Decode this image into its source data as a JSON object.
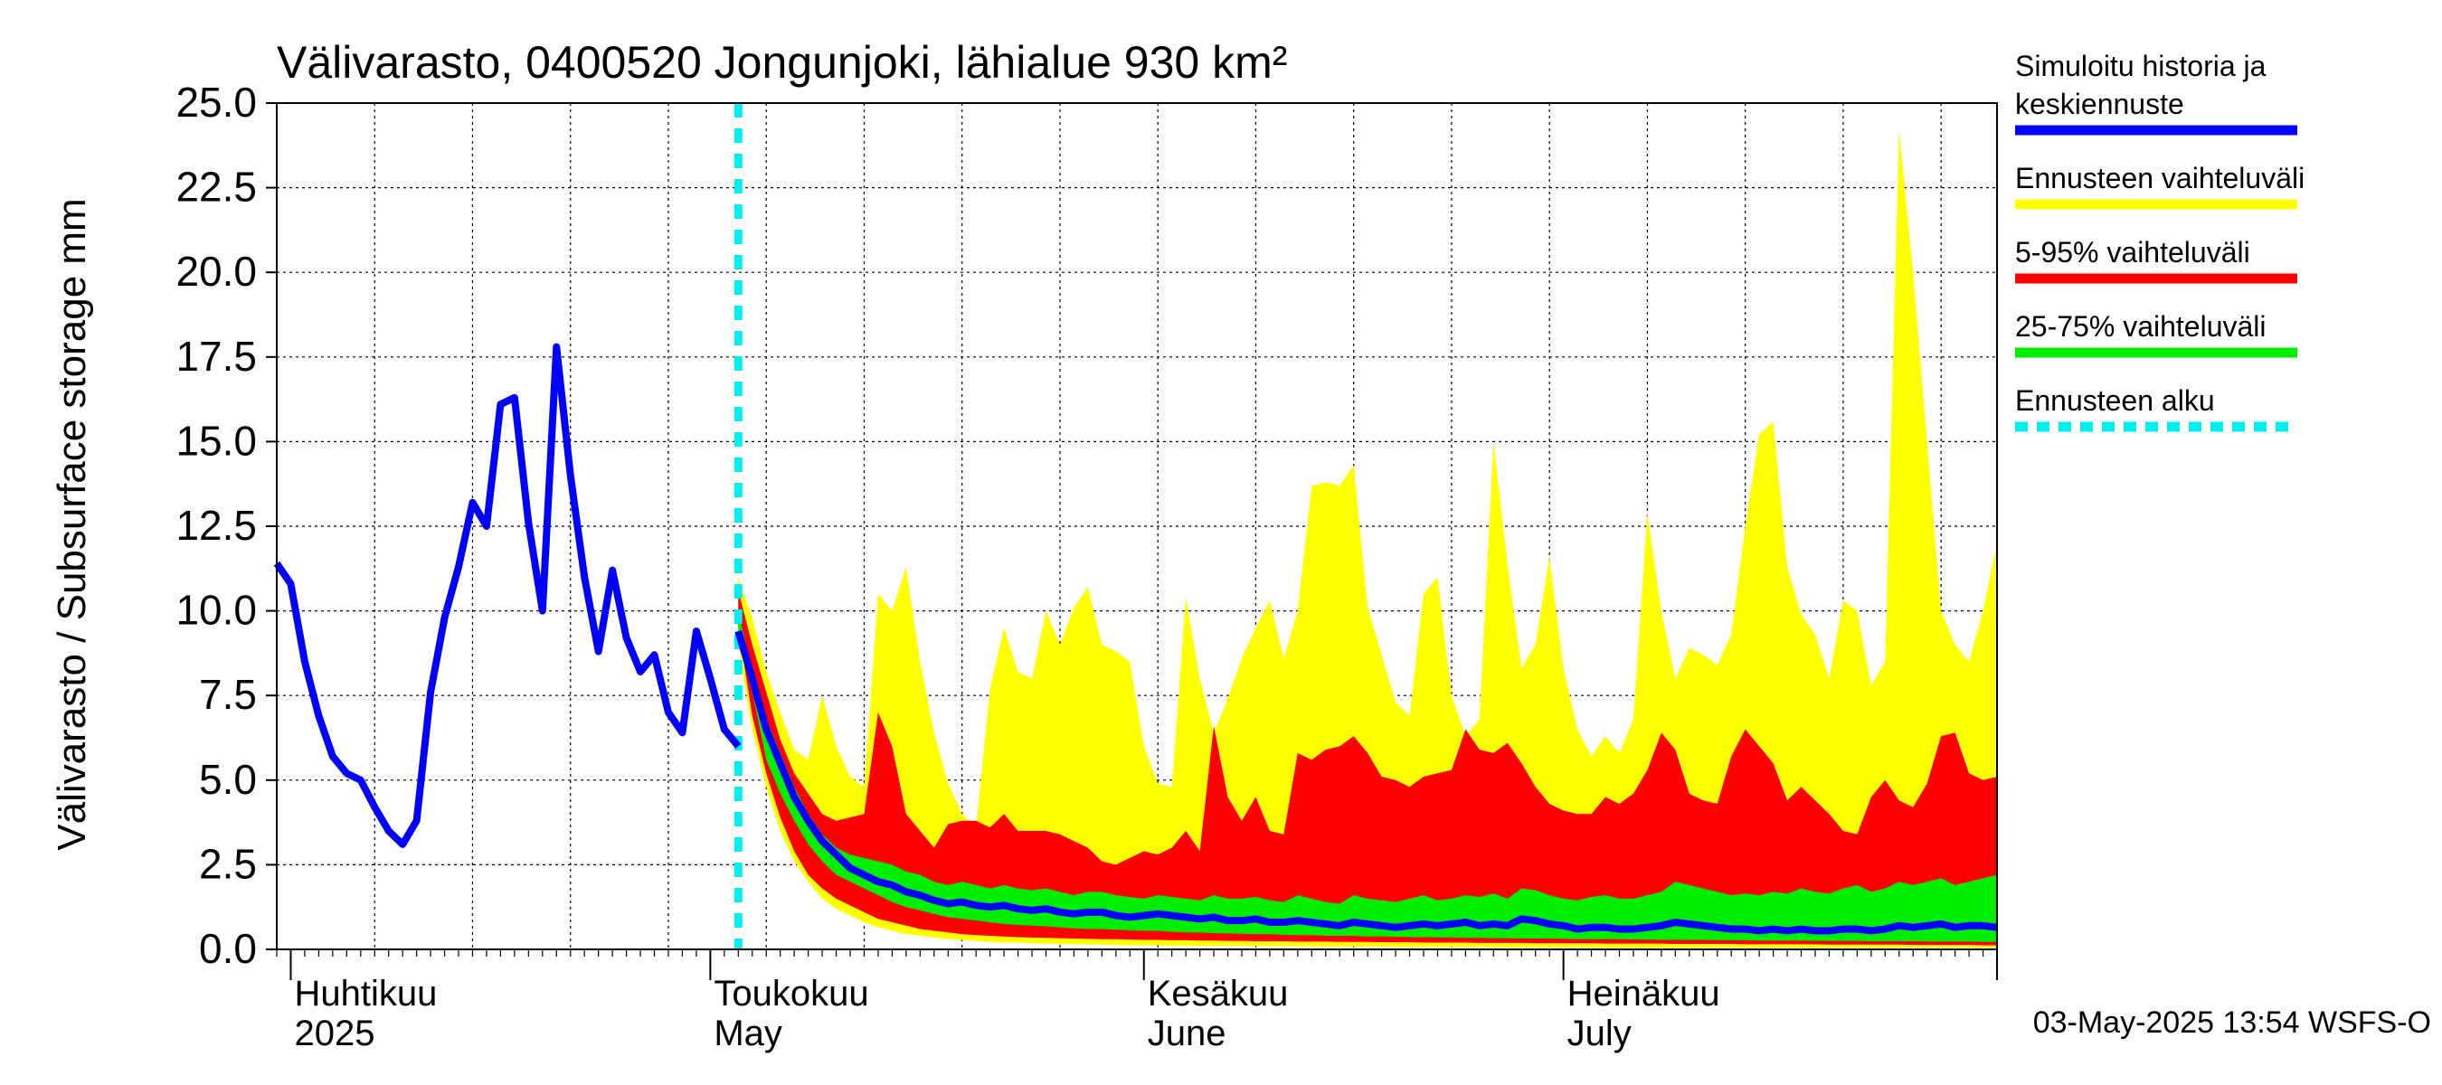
{
  "chart_data": {
    "type": "area",
    "title": "Välivarasto, 0400520 Jongunjoki, lähialue 930 km²",
    "ylabel": "Välivarasto / Subsurface storage  mm",
    "ylim": [
      0,
      25
    ],
    "yticks": [
      {
        "value": 0,
        "label": "0.0"
      },
      {
        "value": 2.5,
        "label": "2.5"
      },
      {
        "value": 5,
        "label": "5.0"
      },
      {
        "value": 7.5,
        "label": "7.5"
      },
      {
        "value": 10,
        "label": "10.0"
      },
      {
        "value": 12.5,
        "label": "12.5"
      },
      {
        "value": 15,
        "label": "15.0"
      },
      {
        "value": 17.5,
        "label": "17.5"
      },
      {
        "value": 20,
        "label": "20.0"
      },
      {
        "value": 22.5,
        "label": "22.5"
      },
      {
        "value": 25,
        "label": "25.0"
      }
    ],
    "x_start": "2025-03-31",
    "x_end": "2025-08-01",
    "forecast_start": "2025-05-03",
    "month_labels": [
      {
        "date": "2025-04-01",
        "line1": "Huhtikuu",
        "line2": "2025"
      },
      {
        "date": "2025-05-01",
        "line1": "Toukokuu",
        "line2": "May"
      },
      {
        "date": "2025-06-01",
        "line1": "Kesäkuu",
        "line2": "June"
      },
      {
        "date": "2025-07-01",
        "line1": "Heinäkuu",
        "line2": "July"
      }
    ],
    "history": {
      "dates": [
        "2025-03-31",
        "2025-04-01",
        "2025-04-02",
        "2025-04-03",
        "2025-04-04",
        "2025-04-05",
        "2025-04-06",
        "2025-04-07",
        "2025-04-08",
        "2025-04-09",
        "2025-04-10",
        "2025-04-11",
        "2025-04-12",
        "2025-04-13",
        "2025-04-14",
        "2025-04-15",
        "2025-04-16",
        "2025-04-17",
        "2025-04-18",
        "2025-04-19",
        "2025-04-20",
        "2025-04-21",
        "2025-04-22",
        "2025-04-23",
        "2025-04-24",
        "2025-04-25",
        "2025-04-26",
        "2025-04-27",
        "2025-04-28",
        "2025-04-29",
        "2025-04-30",
        "2025-05-01",
        "2025-05-02",
        "2025-05-03"
      ],
      "values": [
        11.4,
        10.8,
        8.5,
        6.9,
        5.7,
        5.2,
        5.0,
        4.2,
        3.5,
        3.1,
        3.8,
        7.6,
        9.8,
        11.3,
        13.2,
        12.5,
        16.1,
        16.3,
        12.6,
        10.0,
        17.8,
        14.0,
        11.0,
        8.8,
        11.2,
        9.2,
        8.2,
        8.7,
        7.0,
        6.4,
        9.4,
        8.0,
        6.5,
        6.0
      ]
    },
    "forecast": {
      "dates": [
        "2025-05-03",
        "2025-05-04",
        "2025-05-05",
        "2025-05-06",
        "2025-05-07",
        "2025-05-08",
        "2025-05-09",
        "2025-05-10",
        "2025-05-11",
        "2025-05-12",
        "2025-05-13",
        "2025-05-14",
        "2025-05-15",
        "2025-05-16",
        "2025-05-17",
        "2025-05-18",
        "2025-05-19",
        "2025-05-20",
        "2025-05-21",
        "2025-05-22",
        "2025-05-23",
        "2025-05-24",
        "2025-05-25",
        "2025-05-26",
        "2025-05-27",
        "2025-05-28",
        "2025-05-29",
        "2025-05-30",
        "2025-05-31",
        "2025-06-01",
        "2025-06-02",
        "2025-06-03",
        "2025-06-04",
        "2025-06-05",
        "2025-06-06",
        "2025-06-07",
        "2025-06-08",
        "2025-06-09",
        "2025-06-10",
        "2025-06-11",
        "2025-06-12",
        "2025-06-13",
        "2025-06-14",
        "2025-06-15",
        "2025-06-16",
        "2025-06-17",
        "2025-06-18",
        "2025-06-19",
        "2025-06-20",
        "2025-06-21",
        "2025-06-22",
        "2025-06-23",
        "2025-06-24",
        "2025-06-25",
        "2025-06-26",
        "2025-06-27",
        "2025-06-28",
        "2025-06-29",
        "2025-06-30",
        "2025-07-01",
        "2025-07-02",
        "2025-07-03",
        "2025-07-04",
        "2025-07-05",
        "2025-07-06",
        "2025-07-07",
        "2025-07-08",
        "2025-07-09",
        "2025-07-10",
        "2025-07-11",
        "2025-07-12",
        "2025-07-13",
        "2025-07-14",
        "2025-07-15",
        "2025-07-16",
        "2025-07-17",
        "2025-07-18",
        "2025-07-19",
        "2025-07-20",
        "2025-07-21",
        "2025-07-22",
        "2025-07-23",
        "2025-07-24",
        "2025-07-25",
        "2025-07-26",
        "2025-07-27",
        "2025-07-28",
        "2025-07-29",
        "2025-07-30",
        "2025-07-31",
        "2025-08-01"
      ],
      "min": [
        9.0,
        6.5,
        4.8,
        3.5,
        2.6,
        2.0,
        1.5,
        1.2,
        1.0,
        0.8,
        0.65,
        0.55,
        0.45,
        0.4,
        0.35,
        0.3,
        0.28,
        0.25,
        0.22,
        0.2,
        0.2,
        0.18,
        0.17,
        0.16,
        0.15,
        0.15,
        0.14,
        0.13,
        0.12,
        0.12,
        0.12,
        0.11,
        0.1,
        0.1,
        0.1,
        0.1,
        0.1,
        0.09,
        0.09,
        0.09,
        0.09,
        0.08,
        0.08,
        0.08,
        0.08,
        0.08,
        0.08,
        0.07,
        0.07,
        0.07,
        0.07,
        0.07,
        0.07,
        0.07,
        0.06,
        0.06,
        0.06,
        0.06,
        0.06,
        0.06,
        0.06,
        0.06,
        0.05,
        0.05,
        0.05,
        0.05,
        0.05,
        0.05,
        0.05,
        0.05,
        0.05,
        0.05,
        0.05,
        0.05,
        0.05,
        0.05,
        0.05,
        0.05,
        0.05,
        0.05,
        0.05,
        0.05,
        0.05,
        0.05,
        0.05,
        0.05,
        0.05,
        0.05,
        0.05,
        0.05,
        0.05
      ],
      "p5": [
        9.5,
        6.9,
        5.2,
        3.9,
        2.9,
        2.2,
        1.8,
        1.5,
        1.3,
        1.1,
        0.9,
        0.8,
        0.7,
        0.6,
        0.55,
        0.5,
        0.45,
        0.42,
        0.4,
        0.38,
        0.36,
        0.35,
        0.34,
        0.33,
        0.32,
        0.31,
        0.3,
        0.3,
        0.29,
        0.28,
        0.28,
        0.27,
        0.27,
        0.26,
        0.26,
        0.25,
        0.25,
        0.24,
        0.24,
        0.24,
        0.23,
        0.23,
        0.23,
        0.22,
        0.22,
        0.22,
        0.21,
        0.21,
        0.21,
        0.2,
        0.2,
        0.2,
        0.2,
        0.19,
        0.19,
        0.19,
        0.19,
        0.18,
        0.18,
        0.18,
        0.18,
        0.18,
        0.17,
        0.17,
        0.17,
        0.17,
        0.17,
        0.16,
        0.16,
        0.16,
        0.16,
        0.16,
        0.15,
        0.15,
        0.15,
        0.15,
        0.15,
        0.15,
        0.14,
        0.14,
        0.14,
        0.14,
        0.14,
        0.14,
        0.13,
        0.13,
        0.13,
        0.13,
        0.13,
        0.12,
        0.12
      ],
      "p25": [
        9.1,
        7.6,
        5.6,
        4.6,
        3.8,
        3.1,
        2.6,
        2.2,
        2.0,
        1.8,
        1.6,
        1.4,
        1.25,
        1.15,
        1.05,
        0.95,
        0.9,
        0.85,
        0.8,
        0.75,
        0.72,
        0.7,
        0.68,
        0.65,
        0.62,
        0.6,
        0.6,
        0.58,
        0.56,
        0.55,
        0.55,
        0.52,
        0.5,
        0.5,
        0.48,
        0.47,
        0.46,
        0.45,
        0.45,
        0.43,
        0.42,
        0.42,
        0.4,
        0.4,
        0.4,
        0.38,
        0.38,
        0.37,
        0.36,
        0.36,
        0.35,
        0.35,
        0.34,
        0.34,
        0.33,
        0.33,
        0.32,
        0.32,
        0.32,
        0.31,
        0.3,
        0.3,
        0.3,
        0.3,
        0.29,
        0.29,
        0.28,
        0.28,
        0.28,
        0.28,
        0.27,
        0.27,
        0.27,
        0.26,
        0.26,
        0.26,
        0.26,
        0.25,
        0.25,
        0.25,
        0.25,
        0.24,
        0.24,
        0.24,
        0.24,
        0.23,
        0.23,
        0.23,
        0.23,
        0.22,
        0.22
      ],
      "median": [
        9.4,
        8.0,
        6.5,
        5.5,
        4.5,
        3.8,
        3.2,
        2.8,
        2.4,
        2.2,
        2.0,
        1.9,
        1.7,
        1.6,
        1.45,
        1.35,
        1.4,
        1.3,
        1.25,
        1.3,
        1.2,
        1.15,
        1.2,
        1.1,
        1.05,
        1.1,
        1.1,
        1.0,
        0.95,
        1.0,
        1.05,
        1.0,
        0.95,
        0.9,
        0.95,
        0.85,
        0.85,
        0.9,
        0.8,
        0.8,
        0.85,
        0.8,
        0.75,
        0.7,
        0.8,
        0.75,
        0.7,
        0.65,
        0.7,
        0.75,
        0.7,
        0.75,
        0.8,
        0.7,
        0.75,
        0.7,
        0.9,
        0.85,
        0.75,
        0.7,
        0.6,
        0.65,
        0.65,
        0.6,
        0.6,
        0.65,
        0.7,
        0.8,
        0.75,
        0.7,
        0.65,
        0.6,
        0.6,
        0.55,
        0.6,
        0.55,
        0.6,
        0.55,
        0.55,
        0.6,
        0.6,
        0.55,
        0.6,
        0.7,
        0.65,
        0.7,
        0.75,
        0.65,
        0.7,
        0.7,
        0.65
      ],
      "p75": [
        10.0,
        8.2,
        6.8,
        5.8,
        4.8,
        4.0,
        3.4,
        3.0,
        2.8,
        2.7,
        2.6,
        2.5,
        2.3,
        2.2,
        2.0,
        1.9,
        2.0,
        1.9,
        1.8,
        1.9,
        1.8,
        1.75,
        1.8,
        1.7,
        1.6,
        1.7,
        1.7,
        1.6,
        1.55,
        1.5,
        1.6,
        1.55,
        1.5,
        1.45,
        1.6,
        1.5,
        1.5,
        1.55,
        1.45,
        1.4,
        1.6,
        1.5,
        1.4,
        1.35,
        1.6,
        1.5,
        1.45,
        1.4,
        1.5,
        1.6,
        1.45,
        1.5,
        1.6,
        1.55,
        1.65,
        1.5,
        1.8,
        1.75,
        1.6,
        1.5,
        1.45,
        1.55,
        1.6,
        1.5,
        1.5,
        1.6,
        1.7,
        2.0,
        1.9,
        1.8,
        1.7,
        1.6,
        1.65,
        1.6,
        1.7,
        1.65,
        1.8,
        1.7,
        1.65,
        1.8,
        1.9,
        1.7,
        1.8,
        2.0,
        1.9,
        2.0,
        2.1,
        1.9,
        2.0,
        2.1,
        2.2
      ],
      "p95": [
        10.6,
        9.0,
        7.6,
        6.2,
        5.2,
        4.6,
        4.0,
        3.8,
        3.9,
        4.0,
        7.0,
        6.0,
        4.0,
        3.5,
        3.0,
        3.7,
        3.8,
        3.8,
        3.6,
        4.0,
        3.5,
        3.5,
        3.5,
        3.4,
        3.2,
        3.0,
        2.6,
        2.5,
        2.7,
        2.9,
        2.8,
        3.0,
        3.5,
        2.9,
        6.6,
        4.5,
        3.8,
        4.5,
        3.5,
        3.4,
        5.8,
        5.6,
        5.9,
        6.0,
        6.3,
        5.8,
        5.1,
        5.0,
        4.8,
        5.1,
        5.2,
        5.3,
        6.5,
        5.9,
        5.8,
        6.1,
        5.5,
        4.8,
        4.3,
        4.1,
        4.0,
        4.0,
        4.5,
        4.3,
        4.6,
        5.3,
        6.4,
        5.9,
        4.6,
        4.4,
        4.3,
        5.7,
        6.5,
        6.0,
        5.5,
        4.4,
        4.8,
        4.4,
        4.0,
        3.5,
        3.4,
        4.5,
        5.0,
        4.4,
        4.2,
        4.9,
        6.3,
        6.4,
        5.2,
        5.0,
        5.1
      ],
      "max": [
        11.0,
        9.8,
        8.2,
        7.0,
        5.9,
        5.6,
        7.5,
        6.0,
        5.1,
        4.8,
        10.5,
        10.0,
        11.3,
        8.5,
        6.4,
        4.9,
        4.0,
        3.6,
        7.7,
        9.5,
        8.2,
        8.0,
        10.0,
        9.0,
        10.1,
        10.7,
        9.0,
        8.8,
        8.5,
        6.0,
        4.9,
        4.8,
        10.4,
        8.0,
        6.4,
        7.4,
        8.6,
        9.5,
        10.3,
        8.6,
        10.0,
        13.7,
        13.8,
        13.7,
        14.3,
        10.1,
        8.7,
        7.3,
        6.9,
        10.5,
        11.0,
        7.5,
        6.3,
        6.8,
        15.0,
        11.4,
        8.3,
        9.0,
        11.6,
        8.3,
        6.5,
        5.7,
        6.3,
        5.8,
        6.8,
        12.9,
        10.0,
        8.0,
        8.9,
        8.7,
        8.4,
        9.3,
        12.5,
        15.2,
        15.6,
        11.3,
        9.9,
        9.3,
        8.0,
        10.3,
        10.0,
        7.8,
        8.5,
        24.2,
        20.0,
        15.0,
        10.0,
        9.0,
        8.5,
        10.0,
        12.0
      ]
    },
    "legend": {
      "placement": "right",
      "items": [
        {
          "label": "Simuloitu historia ja keskiennuste",
          "line1": "Simuloitu historia ja",
          "line2": "keskiennuste",
          "color": "#0000ff",
          "style": "solid"
        },
        {
          "label": "Ennusteen vaihteluväli",
          "color": "#ffff00",
          "style": "solid"
        },
        {
          "label": "5-95% vaihteluväli",
          "color": "#ff0000",
          "style": "solid"
        },
        {
          "label": "25-75% vaihteluväli",
          "color": "#00ee00",
          "style": "solid"
        },
        {
          "label": "Ennusteen alku",
          "color": "#00eeee",
          "style": "dashed"
        }
      ]
    },
    "footer": "03-May-2025 13:54 WSFS-O",
    "grid": true
  }
}
